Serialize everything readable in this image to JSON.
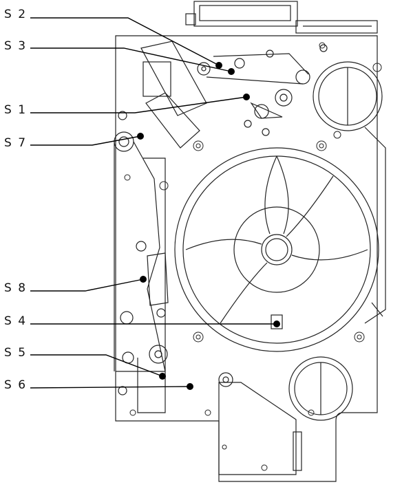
{
  "labels": [
    {
      "id": "s2",
      "text": "S 2"
    },
    {
      "id": "s3",
      "text": "S 3"
    },
    {
      "id": "s1",
      "text": "S 1"
    },
    {
      "id": "s7",
      "text": "S 7"
    },
    {
      "id": "s8",
      "text": "S 8"
    },
    {
      "id": "s4",
      "text": "S 4"
    },
    {
      "id": "s5",
      "text": "S 5"
    },
    {
      "id": "s6",
      "text": "S 6"
    }
  ],
  "colors": {
    "line": "#222222",
    "fill": "#ffffff",
    "marker": "#000000",
    "light": "#777777"
  }
}
